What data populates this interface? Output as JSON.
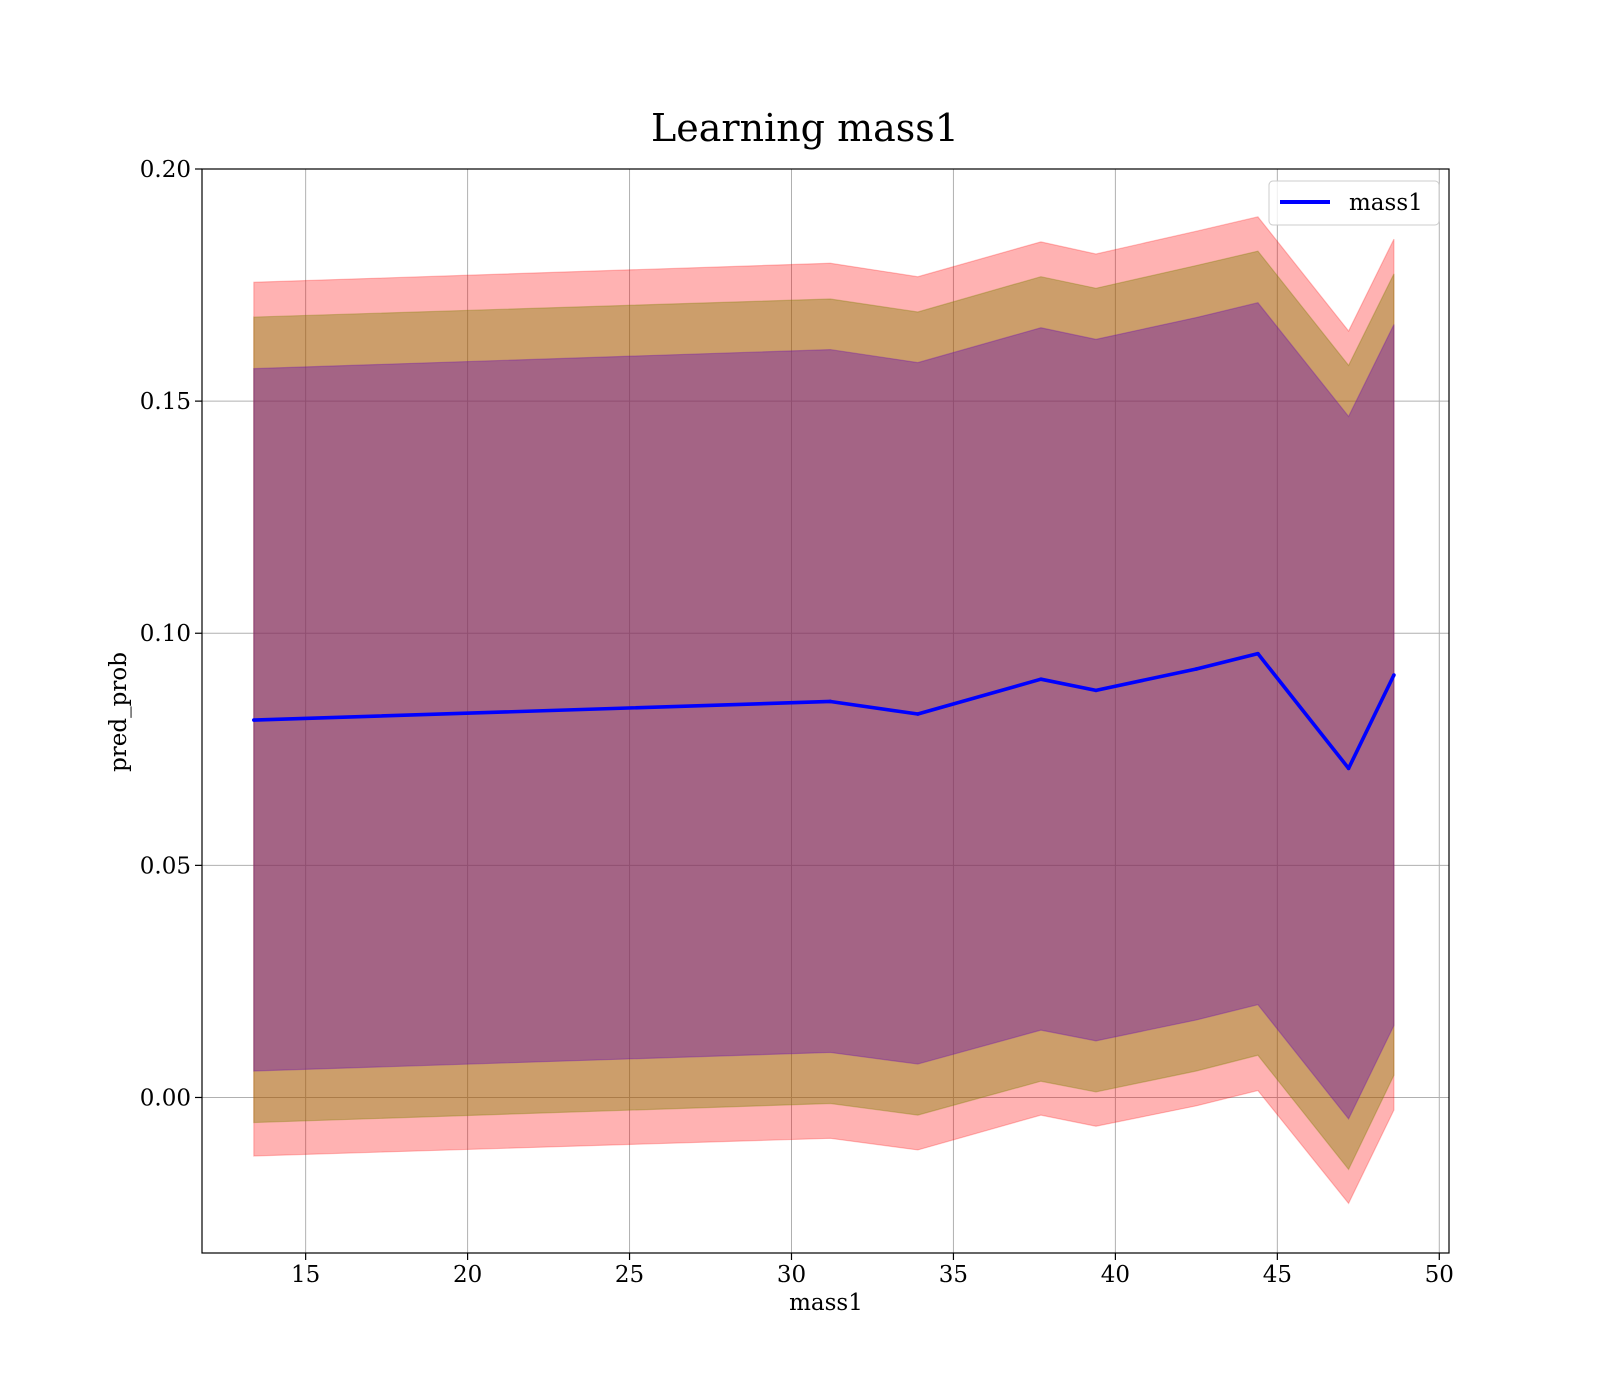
{
  "chart_data": {
    "type": "line",
    "title": "Learning mass1",
    "xlabel": "mass1",
    "ylabel": "pred_prob",
    "xlim": [
      11.8,
      50.3
    ],
    "ylim": [
      -0.0335,
      0.2
    ],
    "grid": true,
    "legend_position": "top-right",
    "x_ticks": [
      15,
      20,
      25,
      30,
      35,
      40,
      45,
      50
    ],
    "x_tick_labels": [
      "15",
      "20",
      "25",
      "30",
      "35",
      "40",
      "45",
      "50"
    ],
    "y_ticks": [
      0.0,
      0.05,
      0.1,
      0.15,
      0.2
    ],
    "y_tick_labels": [
      "0.00",
      "0.05",
      "0.10",
      "0.15",
      "0.20"
    ],
    "x": [
      13.4,
      31.2,
      33.9,
      37.7,
      39.4,
      42.5,
      44.4,
      47.2,
      48.6
    ],
    "series": [
      {
        "name": "mass1",
        "color": "#0000ff",
        "values": [
          0.0813,
          0.0853,
          0.0826,
          0.0901,
          0.0877,
          0.0923,
          0.0956,
          0.0709,
          0.091
        ]
      }
    ],
    "bands": [
      {
        "color": "#ff0000",
        "opacity": 0.3,
        "upper": [
          0.1756,
          0.1797,
          0.1768,
          0.1843,
          0.1817,
          0.1866,
          0.1897,
          0.1651,
          0.1849
        ],
        "lower": [
          -0.0126,
          -0.0088,
          -0.0113,
          -0.0038,
          -0.0062,
          -0.0018,
          0.0015,
          -0.0228,
          -0.0027
        ]
      },
      {
        "color": "#808000",
        "opacity": 0.4,
        "upper": [
          0.1681,
          0.172,
          0.1692,
          0.1768,
          0.1743,
          0.1792,
          0.1823,
          0.1577,
          0.1774
        ],
        "lower": [
          -0.0054,
          -0.0013,
          -0.0038,
          0.0035,
          0.0012,
          0.0057,
          0.0091,
          -0.0155,
          0.0048
        ]
      },
      {
        "color": "#6a0dad",
        "opacity": 0.4,
        "upper": [
          0.157,
          0.1611,
          0.1583,
          0.1658,
          0.1633,
          0.168,
          0.1712,
          0.1467,
          0.1665
        ],
        "lower": [
          0.0057,
          0.0097,
          0.0072,
          0.0145,
          0.0122,
          0.0167,
          0.02,
          -0.0046,
          0.0155
        ]
      }
    ]
  }
}
